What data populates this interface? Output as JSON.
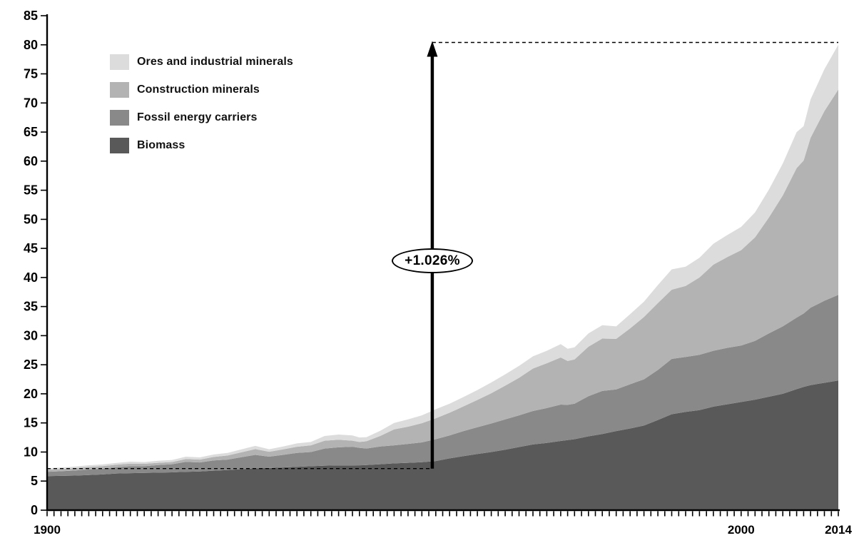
{
  "chart_data": {
    "type": "area",
    "stacked": true,
    "title": "",
    "xlabel": "",
    "ylabel": "",
    "ylim": [
      0,
      85
    ],
    "ytick_step": 5,
    "xlim": [
      1900,
      2014
    ],
    "xtick_label_years": [
      1900,
      2000,
      2014
    ],
    "xtick_minor_every_years": 1,
    "grid": "off",
    "background_color": "#ffffff",
    "axis_color": "#000000",
    "years": [
      1900,
      1902,
      1904,
      1906,
      1908,
      1910,
      1912,
      1914,
      1916,
      1918,
      1920,
      1922,
      1924,
      1926,
      1928,
      1930,
      1932,
      1934,
      1936,
      1938,
      1940,
      1942,
      1944,
      1945,
      1946,
      1948,
      1950,
      1952,
      1954,
      1956,
      1958,
      1960,
      1962,
      1964,
      1966,
      1968,
      1970,
      1972,
      1974,
      1975,
      1976,
      1978,
      1980,
      1982,
      1984,
      1986,
      1988,
      1990,
      1992,
      1994,
      1996,
      1998,
      2000,
      2002,
      2004,
      2006,
      2008,
      2009,
      2010,
      2012,
      2014
    ],
    "series": [
      {
        "name": "Biomass",
        "color": "#595959",
        "values": [
          5.85,
          5.9,
          5.95,
          6.05,
          6.15,
          6.3,
          6.36,
          6.4,
          6.45,
          6.5,
          6.6,
          6.65,
          6.8,
          6.9,
          7.05,
          7.2,
          7.25,
          7.35,
          7.45,
          7.55,
          7.65,
          7.7,
          7.7,
          7.72,
          7.75,
          7.9,
          8.05,
          8.15,
          8.25,
          8.45,
          8.9,
          9.3,
          9.65,
          10.0,
          10.4,
          10.85,
          11.3,
          11.55,
          11.9,
          12.05,
          12.2,
          12.7,
          13.1,
          13.6,
          14.05,
          14.55,
          15.5,
          16.5,
          16.9,
          17.2,
          17.8,
          18.2,
          18.6,
          19.0,
          19.5,
          20.0,
          20.8,
          21.2,
          21.5,
          21.9,
          22.3
        ]
      },
      {
        "name": "Fossil energy carriers",
        "color": "#898989",
        "values": [
          0.75,
          0.8,
          0.87,
          0.95,
          1.0,
          1.1,
          1.2,
          1.15,
          1.3,
          1.4,
          1.7,
          1.55,
          1.75,
          1.8,
          2.05,
          2.3,
          1.95,
          2.15,
          2.4,
          2.45,
          2.95,
          3.1,
          3.2,
          3.0,
          2.85,
          3.05,
          3.1,
          3.25,
          3.4,
          3.75,
          3.95,
          4.3,
          4.6,
          4.9,
          5.2,
          5.45,
          5.75,
          6.0,
          6.25,
          6.05,
          6.1,
          6.9,
          7.4,
          7.15,
          7.6,
          7.95,
          8.6,
          9.5,
          9.45,
          9.5,
          9.6,
          9.7,
          9.7,
          10.1,
          10.9,
          11.6,
          12.3,
          12.6,
          13.3,
          14.1,
          14.7
        ]
      },
      {
        "name": "Construction minerals",
        "color": "#b3b3b3",
        "values": [
          0.35,
          0.37,
          0.4,
          0.43,
          0.42,
          0.42,
          0.45,
          0.42,
          0.4,
          0.38,
          0.5,
          0.5,
          0.6,
          0.7,
          0.85,
          1.0,
          0.85,
          0.95,
          1.05,
          1.15,
          1.35,
          1.3,
          1.05,
          1.0,
          1.25,
          1.8,
          2.75,
          2.95,
          3.3,
          3.6,
          3.9,
          4.25,
          4.7,
          5.2,
          5.8,
          6.45,
          7.3,
          7.7,
          8.1,
          7.55,
          7.6,
          8.5,
          9.0,
          8.7,
          9.6,
          10.7,
          11.5,
          11.9,
          12.2,
          13.3,
          14.8,
          15.6,
          16.4,
          17.8,
          19.9,
          22.5,
          25.7,
          26.3,
          29.2,
          32.6,
          35.3
        ]
      },
      {
        "name": "Ores and industrial minerals",
        "color": "#dcdcdc",
        "values": [
          0.25,
          0.26,
          0.28,
          0.3,
          0.29,
          0.3,
          0.33,
          0.3,
          0.35,
          0.35,
          0.4,
          0.38,
          0.42,
          0.45,
          0.5,
          0.55,
          0.42,
          0.5,
          0.58,
          0.58,
          0.8,
          0.9,
          0.9,
          0.78,
          0.7,
          0.9,
          1.1,
          1.25,
          1.35,
          1.55,
          1.55,
          1.6,
          1.7,
          1.85,
          1.95,
          2.05,
          2.1,
          2.15,
          2.3,
          2.1,
          2.1,
          2.3,
          2.3,
          2.15,
          2.45,
          2.65,
          3.1,
          3.5,
          3.3,
          3.4,
          3.6,
          3.8,
          4.0,
          4.3,
          4.8,
          5.5,
          6.2,
          5.9,
          6.6,
          7.2,
          7.7
        ]
      }
    ],
    "legend": {
      "position": "top-left",
      "items": [
        {
          "label": "Ores and industrial minerals",
          "color": "#dcdcdc"
        },
        {
          "label": "Construction minerals",
          "color": "#b3b3b3"
        },
        {
          "label": "Fossil energy carriers",
          "color": "#898989"
        },
        {
          "label": "Biomass",
          "color": "#595959"
        }
      ]
    },
    "annotation": {
      "label": "+1.026%",
      "arrow_year": 1955.5,
      "arrow_from_value": 7.15,
      "arrow_to_value": 80.4,
      "baseline_dash_value": 7.15,
      "top_dash_value": 80.4
    }
  }
}
